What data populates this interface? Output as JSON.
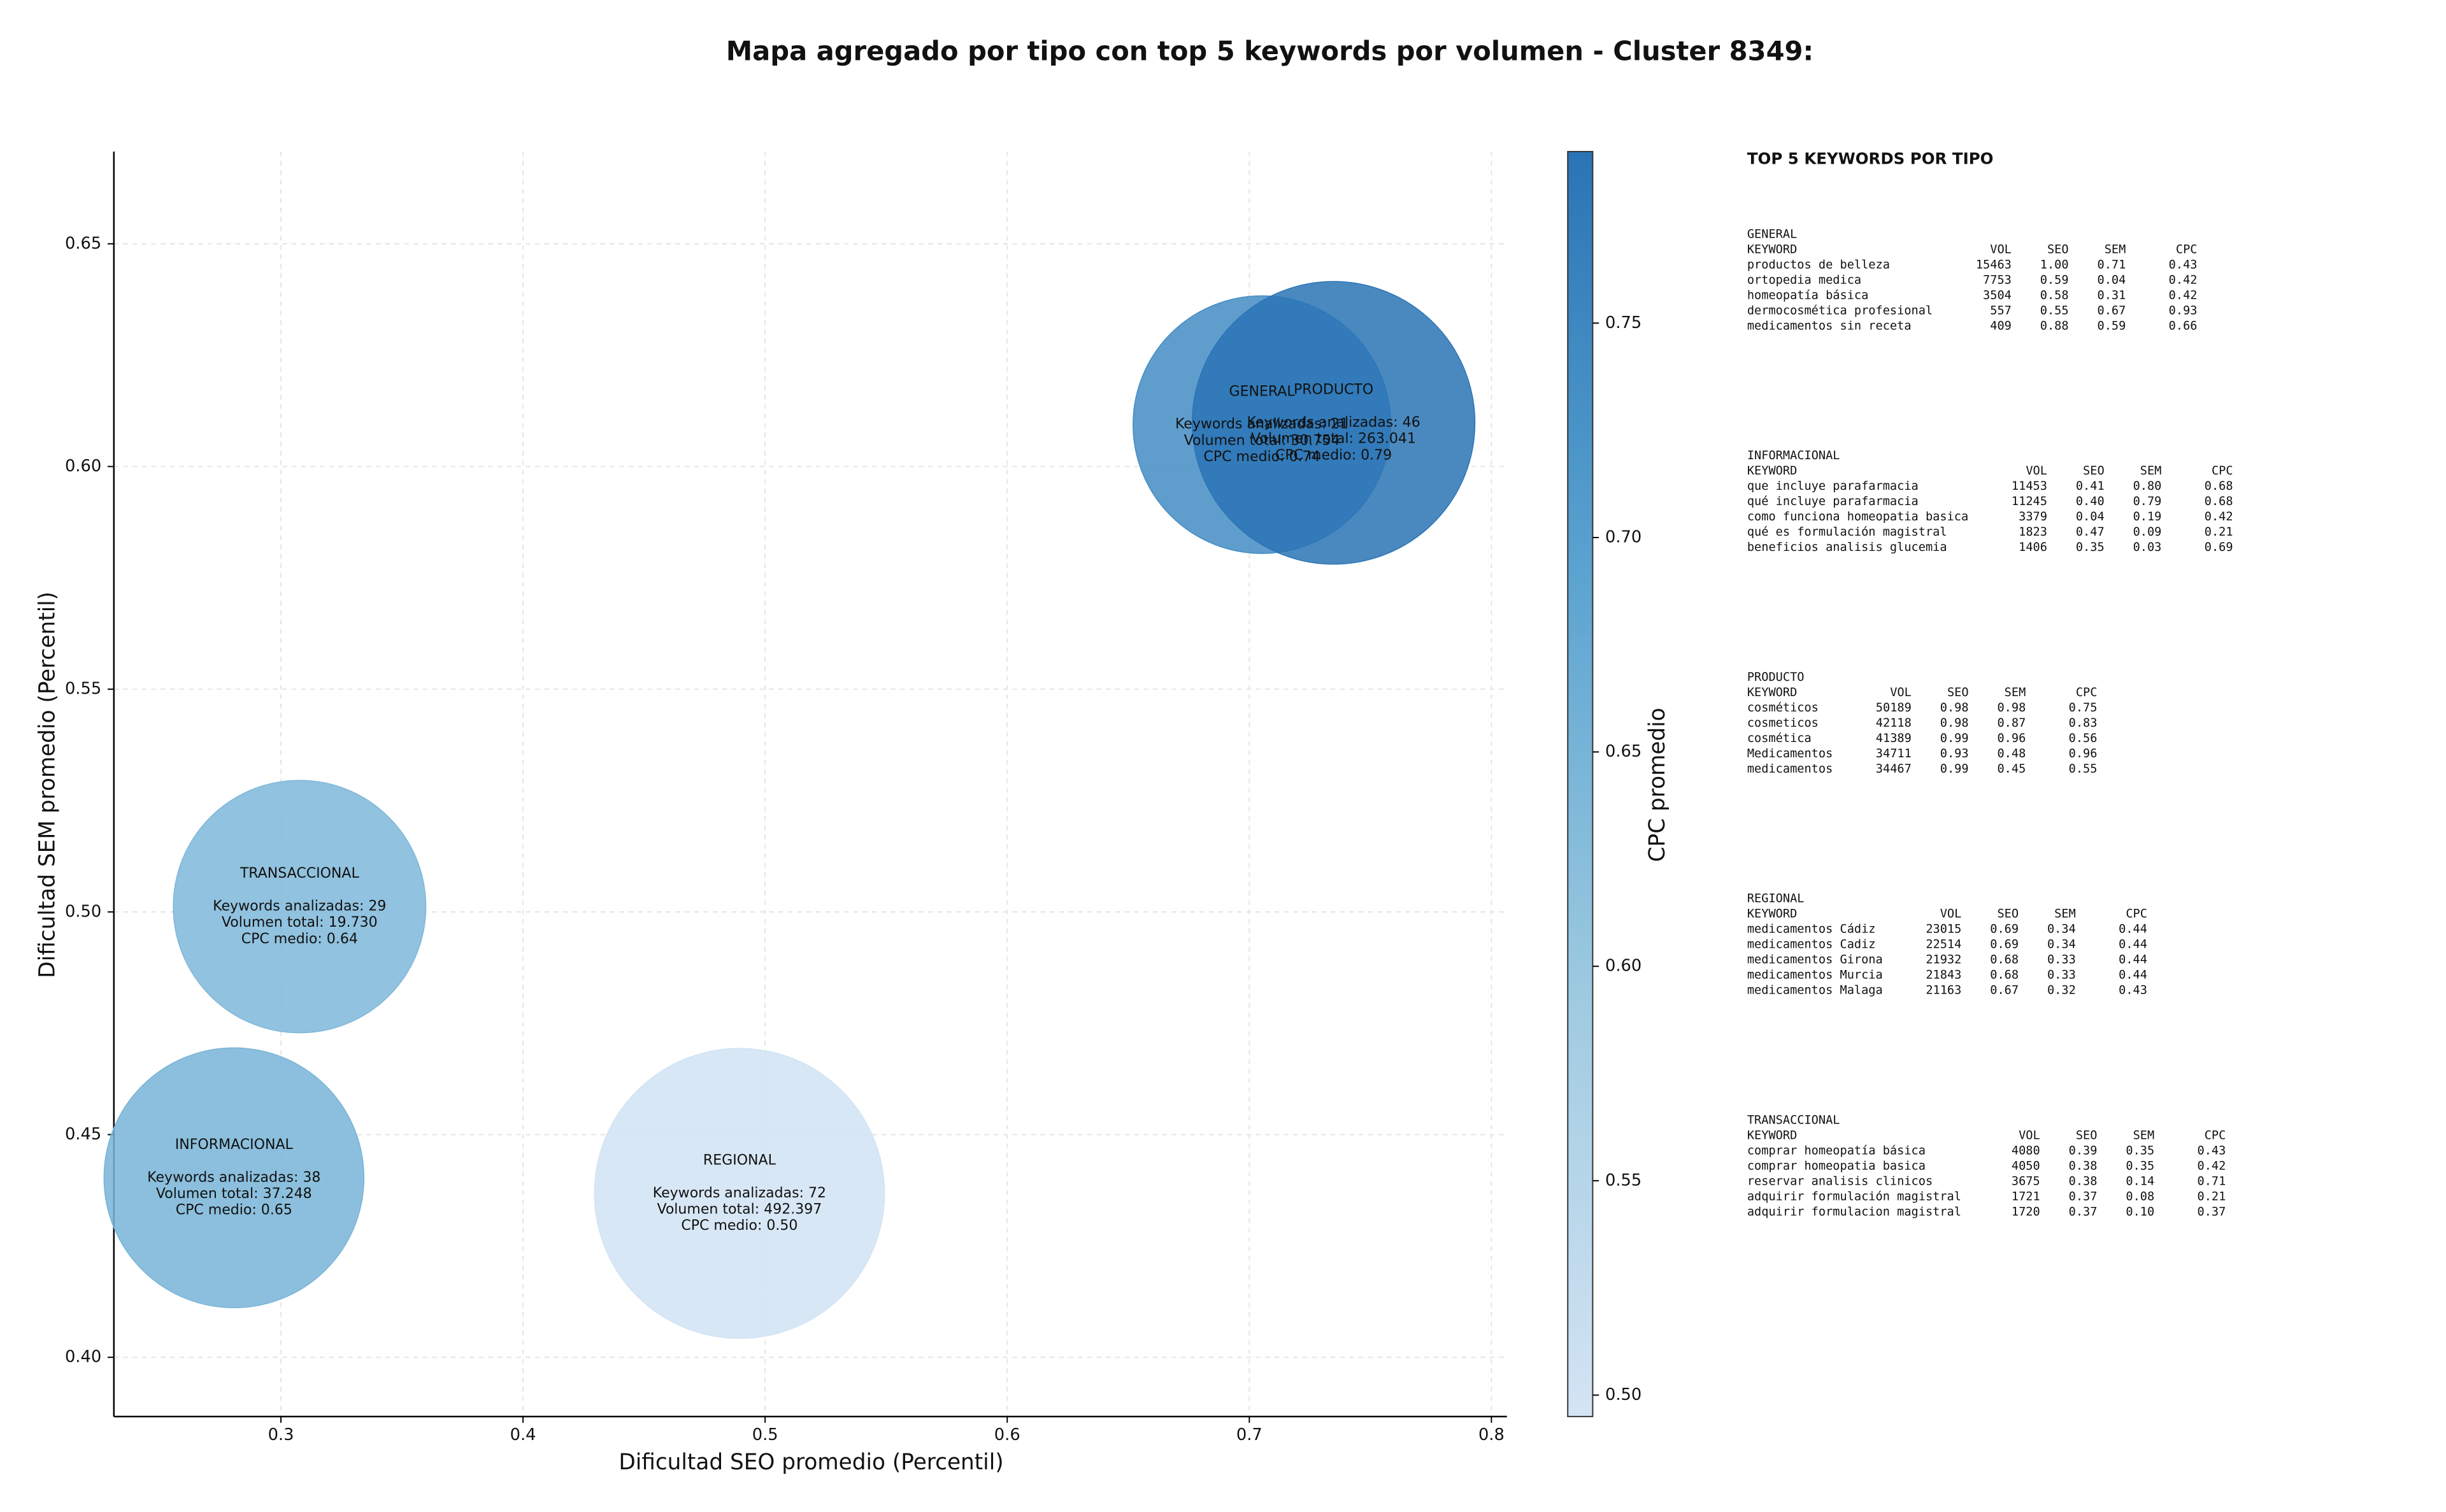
{
  "chart_data": {
    "type": "bubble",
    "title": "Mapa agregado por tipo con top 5 keywords por volumen - Cluster 8349:",
    "x_label": "Dificultad SEO promedio (Percentil)",
    "y_label": "Dificultad SEM promedio (Percentil)",
    "colorbar_label": "CPC promedio",
    "xlim": [
      0.231,
      0.8064
    ],
    "ylim": [
      0.3867,
      0.6707
    ],
    "xticks": [
      0.3,
      0.4,
      {
        "value": 0.5,
        "label": "0.5"
      },
      0.6,
      0.7,
      0.8
    ],
    "yticks": [
      {
        "value": 0.4,
        "label": "0.40"
      },
      0.45,
      {
        "value": 0.5,
        "label": "0.50"
      },
      0.55,
      {
        "value": 0.6,
        "label": "0.60"
      },
      0.65
    ],
    "clim": [
      0.495,
      0.79
    ],
    "cticks": [
      {
        "value": 0.5,
        "label": "0.50"
      },
      0.55,
      {
        "value": 0.6,
        "label": "0.60"
      },
      0.65,
      {
        "value": 0.7,
        "label": "0.70"
      },
      0.75
    ],
    "colormap": [
      "#d4e4f4",
      "#9ecae1",
      "#5ba3d0",
      "#2a74b5"
    ],
    "grid": true,
    "categories": [
      "INFORMACIONAL",
      "TRANSACCIONAL",
      "REGIONAL",
      "GENERAL",
      "PRODUCTO"
    ],
    "x": [
      0.2806,
      0.3077,
      0.4894,
      0.7052,
      0.7348
    ],
    "values": [
      0.4403,
      0.5012,
      0.4368,
      0.6094,
      0.6098
    ],
    "sizes": [
      37248,
      19730,
      492397,
      30754,
      263041
    ],
    "color_values": [
      0.65,
      0.64,
      0.5,
      0.74,
      0.79
    ],
    "annotations": [
      [
        "Keywords analizadas: 38",
        "Volumen total: 37.248",
        "CPC medio: 0.65"
      ],
      [
        "Keywords analizadas: 29",
        "Volumen total: 19.730",
        "CPC medio: 0.64"
      ],
      [
        "Keywords analizadas: 72",
        "Volumen total: 492.397",
        "CPC medio: 0.50"
      ],
      [
        "Keywords analizadas: 21",
        "Volumen total: 30.754",
        "CPC medio: 0.74"
      ],
      [
        "Keywords analizadas: 46",
        "Volumen total: 263.041",
        "CPC medio: 0.79"
      ]
    ]
  },
  "panel": {
    "title": "TOP 5 KEYWORDS POR TIPO",
    "header": [
      "KEYWORD",
      "VOL",
      "SEO",
      "SEM",
      "CPC"
    ],
    "groups": [
      {
        "name": "GENERAL",
        "rows": [
          [
            "productos de belleza",
            "15463",
            "1.00",
            "0.71",
            "0.43"
          ],
          [
            "ortopedia medica",
            "7753",
            "0.59",
            "0.04",
            "0.42"
          ],
          [
            "homeopatía básica",
            "3504",
            "0.58",
            "0.31",
            "0.42"
          ],
          [
            "dermocosmética profesional",
            "557",
            "0.55",
            "0.67",
            "0.93"
          ],
          [
            "medicamentos sin receta",
            "409",
            "0.88",
            "0.59",
            "0.66"
          ]
        ]
      },
      {
        "name": "INFORMACIONAL",
        "rows": [
          [
            "que incluye parafarmacia",
            "11453",
            "0.41",
            "0.80",
            "0.68"
          ],
          [
            "qué incluye parafarmacia",
            "11245",
            "0.40",
            "0.79",
            "0.68"
          ],
          [
            "como funciona homeopatia basica",
            "3379",
            "0.04",
            "0.19",
            "0.42"
          ],
          [
            "qué es formulación magistral",
            "1823",
            "0.47",
            "0.09",
            "0.21"
          ],
          [
            "beneficios analisis glucemia",
            "1406",
            "0.35",
            "0.03",
            "0.69"
          ]
        ]
      },
      {
        "name": "PRODUCTO",
        "rows": [
          [
            "cosméticos",
            "50189",
            "0.98",
            "0.98",
            "0.75"
          ],
          [
            "cosmeticos",
            "42118",
            "0.98",
            "0.87",
            "0.83"
          ],
          [
            "cosmética",
            "41389",
            "0.99",
            "0.96",
            "0.56"
          ],
          [
            "Medicamentos",
            "34711",
            "0.93",
            "0.48",
            "0.96"
          ],
          [
            "medicamentos",
            "34467",
            "0.99",
            "0.45",
            "0.55"
          ]
        ]
      },
      {
        "name": "REGIONAL",
        "rows": [
          [
            "medicamentos Cádiz",
            "23015",
            "0.69",
            "0.34",
            "0.44"
          ],
          [
            "medicamentos Cadiz",
            "22514",
            "0.69",
            "0.34",
            "0.44"
          ],
          [
            "medicamentos Girona",
            "21932",
            "0.68",
            "0.33",
            "0.44"
          ],
          [
            "medicamentos Murcia",
            "21843",
            "0.68",
            "0.33",
            "0.44"
          ],
          [
            "medicamentos Malaga",
            "21163",
            "0.67",
            "0.32",
            "0.43"
          ]
        ]
      },
      {
        "name": "TRANSACCIONAL",
        "rows": [
          [
            "comprar homeopatía básica",
            "4080",
            "0.39",
            "0.35",
            "0.43"
          ],
          [
            "comprar homeopatia basica",
            "4050",
            "0.38",
            "0.35",
            "0.42"
          ],
          [
            "reservar analisis clinicos",
            "3675",
            "0.38",
            "0.14",
            "0.71"
          ],
          [
            "adquirir formulación magistral",
            "1721",
            "0.37",
            "0.08",
            "0.21"
          ],
          [
            "adquirir formulacion magistral",
            "1720",
            "0.37",
            "0.10",
            "0.37"
          ]
        ]
      }
    ]
  }
}
